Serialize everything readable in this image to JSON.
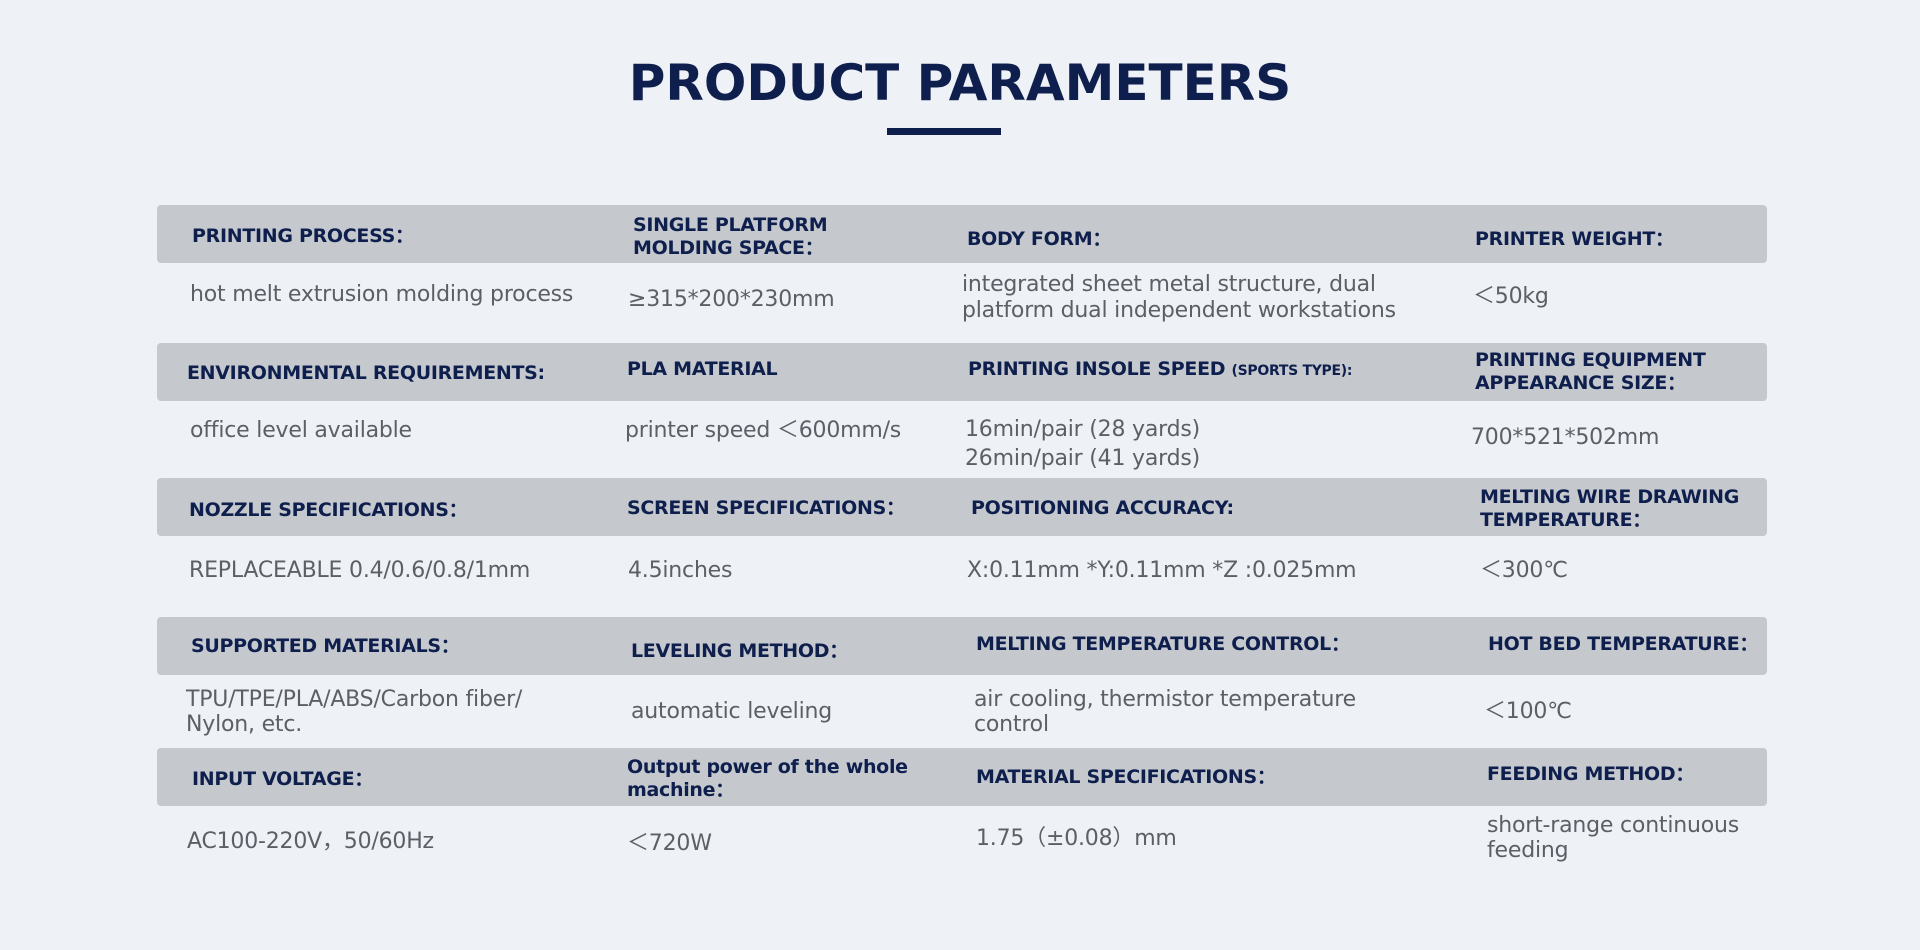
{
  "title": "PRODUCT PARAMETERS",
  "rows": [
    {
      "cols": [
        {
          "label": "PRINTING PROCESS：",
          "value": "hot melt extrusion molding process"
        },
        {
          "label_lines": [
            "SINGLE PLATFORM",
            "MOLDING SPACE："
          ],
          "value": "≥315*200*230mm"
        },
        {
          "label": "BODY FORM：",
          "value_lines": [
            "integrated sheet metal structure, dual",
            "platform dual independent workstations"
          ]
        },
        {
          "label": "PRINTER WEIGHT：",
          "value": "＜50kg"
        }
      ]
    },
    {
      "cols": [
        {
          "label": "ENVIRONMENTAL REQUIREMENTS:",
          "value": "office level available"
        },
        {
          "label": "PLA MATERIAL",
          "value": "printer speed ＜600mm/s"
        },
        {
          "label": "PRINTING INSOLE SPEED",
          "label_suffix": "(SPORTS TYPE):",
          "value_lines": [
            "16min/pair (28 yards)",
            "26min/pair (41 yards)"
          ]
        },
        {
          "label_lines": [
            "PRINTING EQUIPMENT",
            "APPEARANCE SIZE："
          ],
          "value": "700*521*502mm"
        }
      ]
    },
    {
      "cols": [
        {
          "label": "NOZZLE SPECIFICATIONS：",
          "value": "REPLACEABLE 0.4/0.6/0.8/1mm"
        },
        {
          "label": "SCREEN SPECIFICATIONS：",
          "value": "4.5inches"
        },
        {
          "label": "POSITIONING ACCURACY:",
          "value": "X:0.11mm *Y:0.11mm *Z :0.025mm"
        },
        {
          "label_lines": [
            "MELTING WIRE DRAWING",
            "TEMPERATURE："
          ],
          "value": "＜300℃"
        }
      ]
    },
    {
      "cols": [
        {
          "label": "SUPPORTED MATERIALS：",
          "value_lines": [
            "TPU/TPE/PLA/ABS/Carbon fiber/",
            "Nylon, etc."
          ]
        },
        {
          "label": "LEVELING METHOD：",
          "value": "automatic leveling"
        },
        {
          "label": "MELTING TEMPERATURE CONTROL：",
          "value_lines": [
            "air cooling, thermistor temperature",
            "control"
          ]
        },
        {
          "label": "HOT BED TEMPERATURE：",
          "value": "＜100℃"
        }
      ]
    },
    {
      "cols": [
        {
          "label": "INPUT VOLTAGE：",
          "value": "AC100-220V，50/60Hz"
        },
        {
          "label_lines": [
            "Output power of the whole",
            "machine："
          ],
          "value": "＜720W"
        },
        {
          "label": "MATERIAL SPECIFICATIONS：",
          "value": "1.75（±0.08）mm"
        },
        {
          "label": "FEEDING METHOD：",
          "value_lines": [
            "short-range continuous",
            "feeding"
          ]
        }
      ]
    }
  ]
}
